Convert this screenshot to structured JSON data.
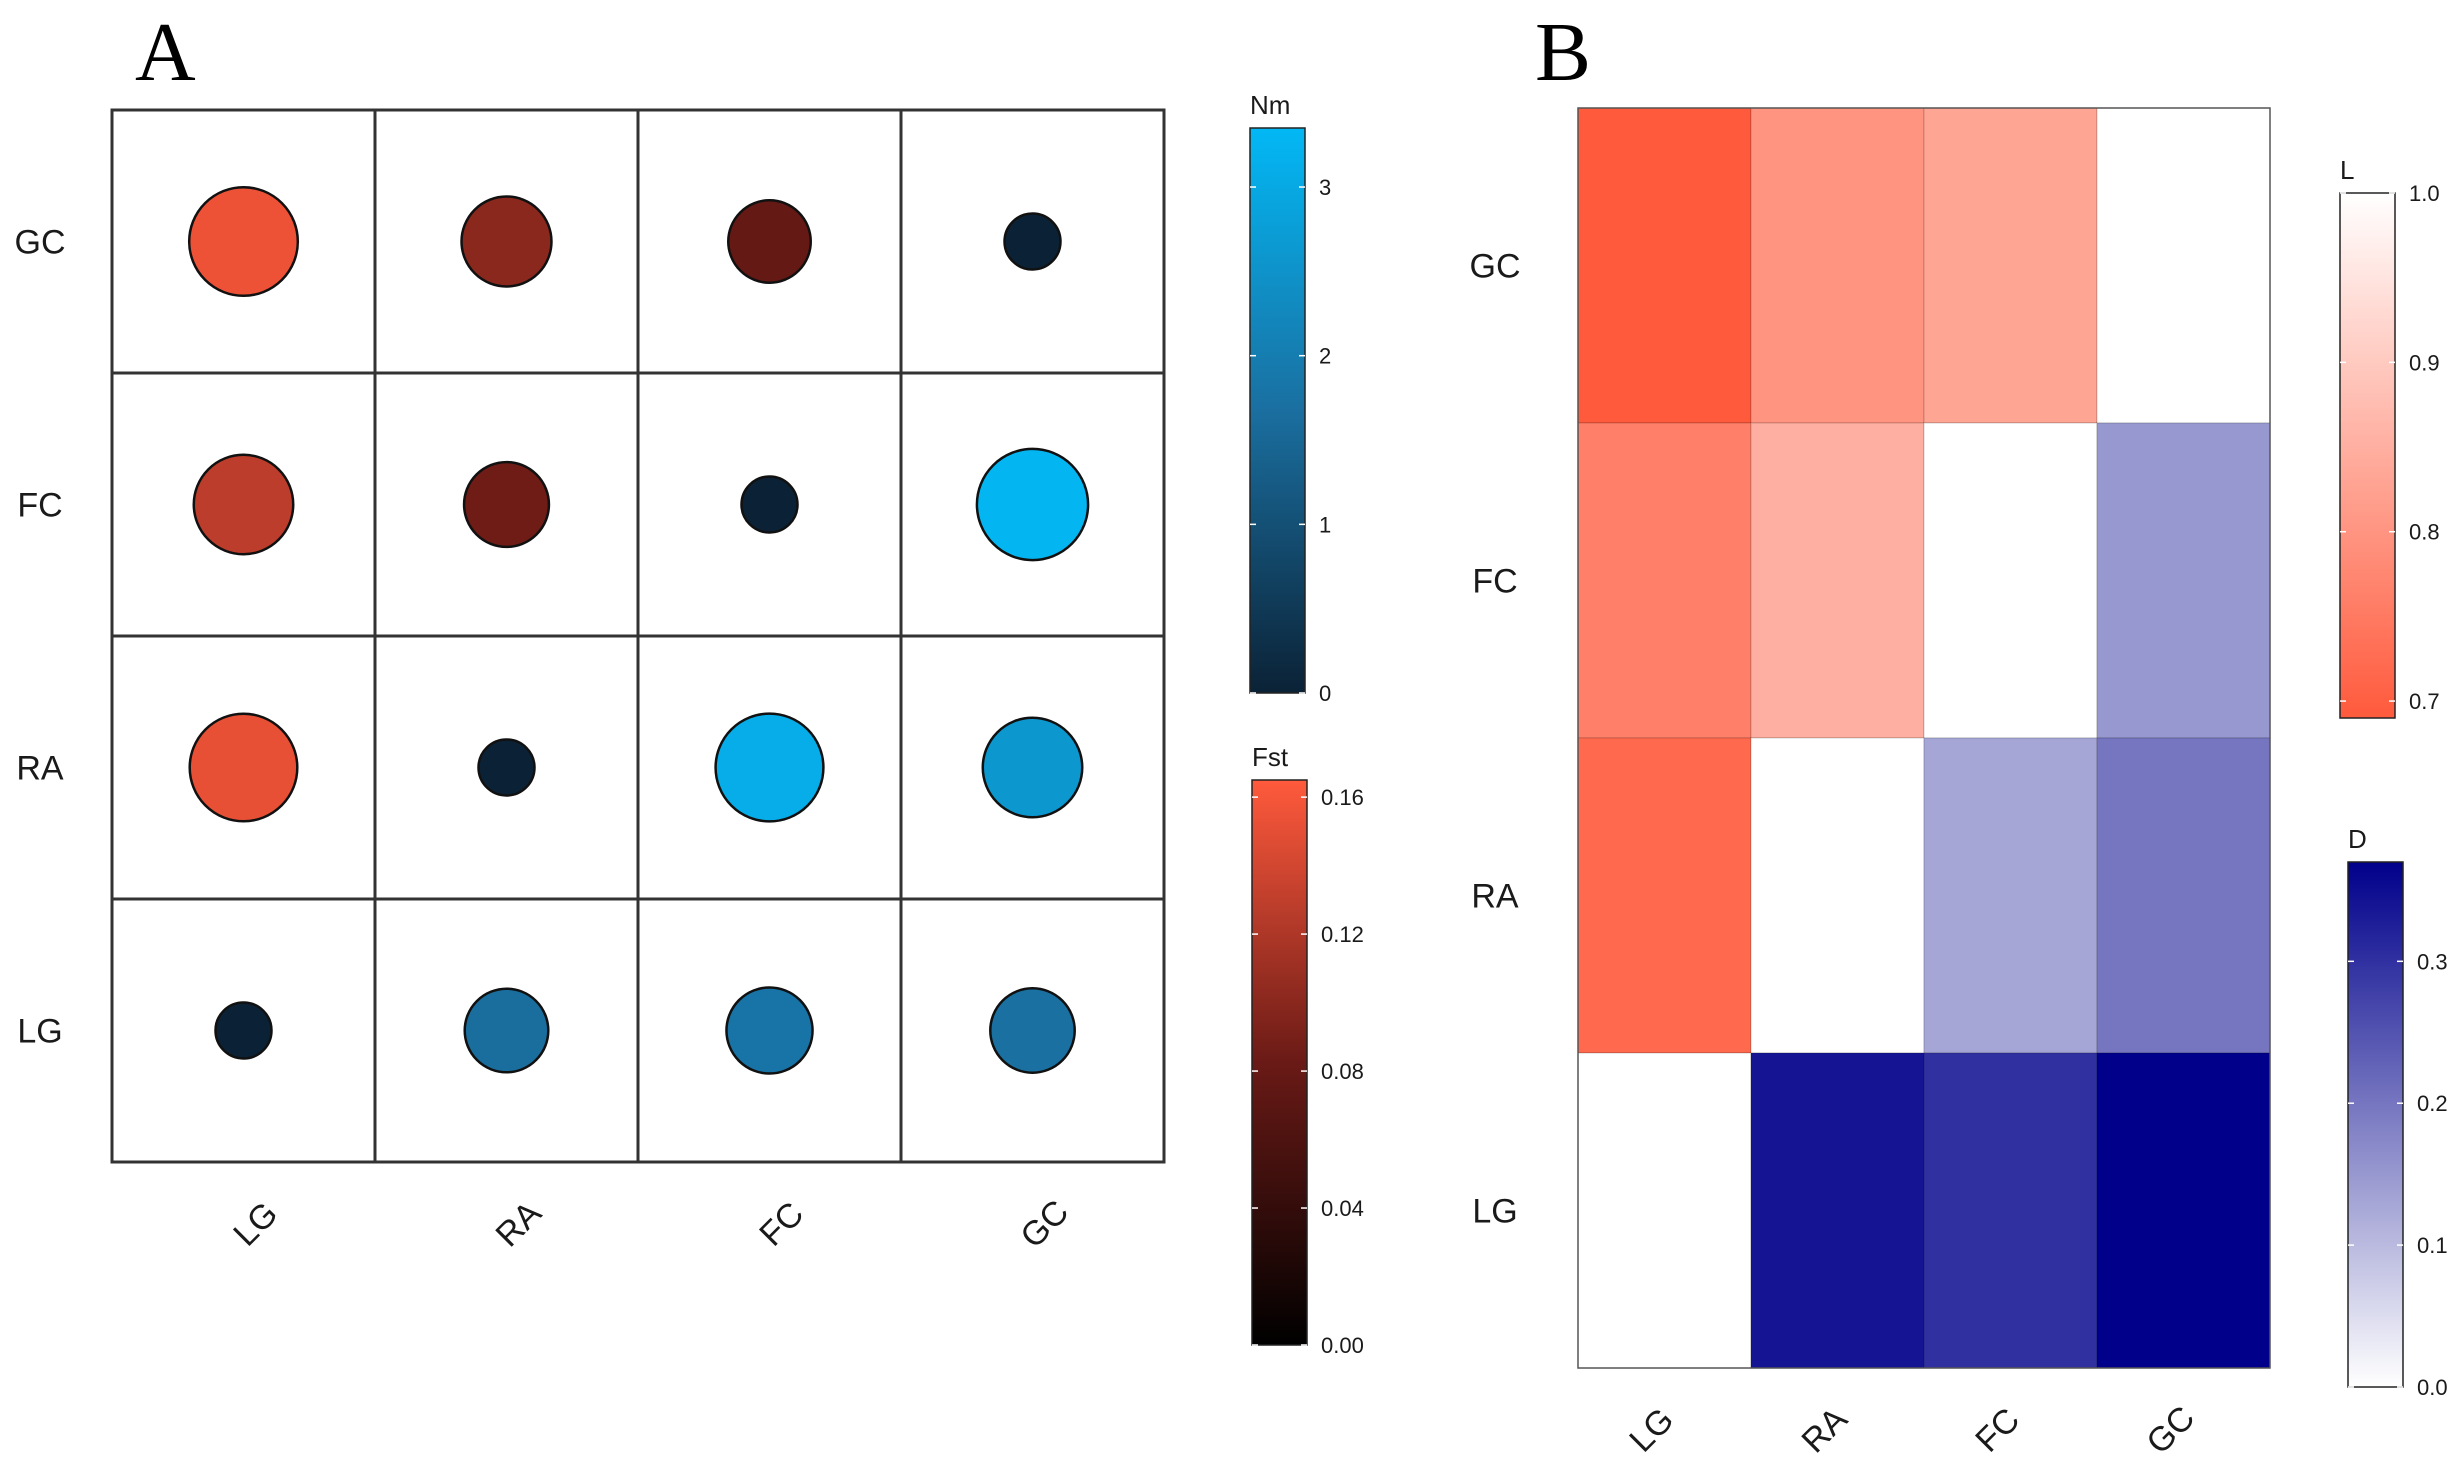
{
  "chart_data": [
    {
      "panel": "A",
      "type": "bubble-matrix",
      "columns": [
        "LG",
        "RA",
        "FC",
        "GC"
      ],
      "rows": [
        "GC",
        "FC",
        "RA",
        "LG"
      ],
      "note": "upper-left triangle shows Fst (red scale); lower-right triangle shows Nm (blue scale); diagonal is self-comparison",
      "cells": [
        {
          "row": "GC",
          "col": "LG",
          "metric": "Fst",
          "value": 0.155
        },
        {
          "row": "GC",
          "col": "RA",
          "metric": "Fst",
          "value": 0.1
        },
        {
          "row": "GC",
          "col": "FC",
          "metric": "Fst",
          "value": 0.078
        },
        {
          "row": "GC",
          "col": "GC",
          "metric": "self",
          "value": 0
        },
        {
          "row": "FC",
          "col": "LG",
          "metric": "Fst",
          "value": 0.128
        },
        {
          "row": "FC",
          "col": "RA",
          "metric": "Fst",
          "value": 0.085
        },
        {
          "row": "FC",
          "col": "FC",
          "metric": "self",
          "value": 0
        },
        {
          "row": "FC",
          "col": "GC",
          "metric": "Nm",
          "value": 3.3
        },
        {
          "row": "RA",
          "col": "LG",
          "metric": "Fst",
          "value": 0.152
        },
        {
          "row": "RA",
          "col": "RA",
          "metric": "self",
          "value": 0
        },
        {
          "row": "RA",
          "col": "FC",
          "metric": "Nm",
          "value": 3.1
        },
        {
          "row": "RA",
          "col": "GC",
          "metric": "Nm",
          "value": 2.6
        },
        {
          "row": "LG",
          "col": "LG",
          "metric": "self",
          "value": 0
        },
        {
          "row": "LG",
          "col": "RA",
          "metric": "Nm",
          "value": 1.65
        },
        {
          "row": "LG",
          "col": "FC",
          "metric": "Nm",
          "value": 1.8
        },
        {
          "row": "LG",
          "col": "GC",
          "metric": "Nm",
          "value": 1.7
        }
      ],
      "legends": [
        {
          "title": "Nm",
          "range": [
            0,
            3.35
          ],
          "ticks": [
            "0",
            "1",
            "2",
            "3"
          ],
          "tick_values": [
            0,
            1,
            2,
            3
          ],
          "colors": [
            "#0b2236",
            "#1a6fa0",
            "#02b8f5"
          ]
        },
        {
          "title": "Fst",
          "range": [
            0,
            0.165
          ],
          "ticks": [
            "0.00",
            "0.04",
            "0.08",
            "0.12",
            "0.16"
          ],
          "tick_values": [
            0,
            0.04,
            0.08,
            0.12,
            0.16
          ],
          "colors": [
            "#000000",
            "#6a1a16",
            "#ff5a3c"
          ]
        }
      ]
    },
    {
      "panel": "B",
      "type": "heatmap",
      "columns": [
        "LG",
        "RA",
        "FC",
        "GC"
      ],
      "rows": [
        "GC",
        "FC",
        "RA",
        "LG"
      ],
      "note": "upper-left triangle shows L (red scale, 1.0 = white); lower-right triangle shows D (blue scale, 0 = white)",
      "cells": [
        {
          "row": "GC",
          "col": "LG",
          "metric": "L",
          "value": 0.69
        },
        {
          "row": "GC",
          "col": "RA",
          "metric": "L",
          "value": 0.8
        },
        {
          "row": "GC",
          "col": "FC",
          "metric": "L",
          "value": 0.83
        },
        {
          "row": "GC",
          "col": "GC",
          "metric": "self",
          "value": 1.0
        },
        {
          "row": "FC",
          "col": "LG",
          "metric": "L",
          "value": 0.76
        },
        {
          "row": "FC",
          "col": "RA",
          "metric": "L",
          "value": 0.85
        },
        {
          "row": "FC",
          "col": "FC",
          "metric": "self",
          "value": 1.0
        },
        {
          "row": "FC",
          "col": "GC",
          "metric": "D",
          "value": 0.15
        },
        {
          "row": "RA",
          "col": "LG",
          "metric": "L",
          "value": 0.72
        },
        {
          "row": "RA",
          "col": "RA",
          "metric": "self",
          "value": 1.0
        },
        {
          "row": "RA",
          "col": "FC",
          "metric": "D",
          "value": 0.13
        },
        {
          "row": "RA",
          "col": "GC",
          "metric": "D",
          "value": 0.2
        },
        {
          "row": "LG",
          "col": "LG",
          "metric": "self",
          "value": 1.0
        },
        {
          "row": "LG",
          "col": "RA",
          "metric": "D",
          "value": 0.34
        },
        {
          "row": "LG",
          "col": "FC",
          "metric": "D",
          "value": 0.3
        },
        {
          "row": "LG",
          "col": "GC",
          "metric": "D",
          "value": 0.37
        }
      ],
      "legends": [
        {
          "title": "L",
          "range": [
            0.69,
            1.0
          ],
          "ticks": [
            "0.7",
            "0.8",
            "0.9",
            "1.0"
          ],
          "tick_values": [
            0.7,
            0.8,
            0.9,
            1.0
          ],
          "colors": [
            "#ff5a3c",
            "#ffffff"
          ]
        },
        {
          "title": "D",
          "range": [
            0,
            0.37
          ],
          "ticks": [
            "0.0",
            "0.1",
            "0.2",
            "0.3"
          ],
          "tick_values": [
            0,
            0.1,
            0.2,
            0.3
          ],
          "colors": [
            "#ffffff",
            "#00008b"
          ]
        }
      ]
    }
  ]
}
